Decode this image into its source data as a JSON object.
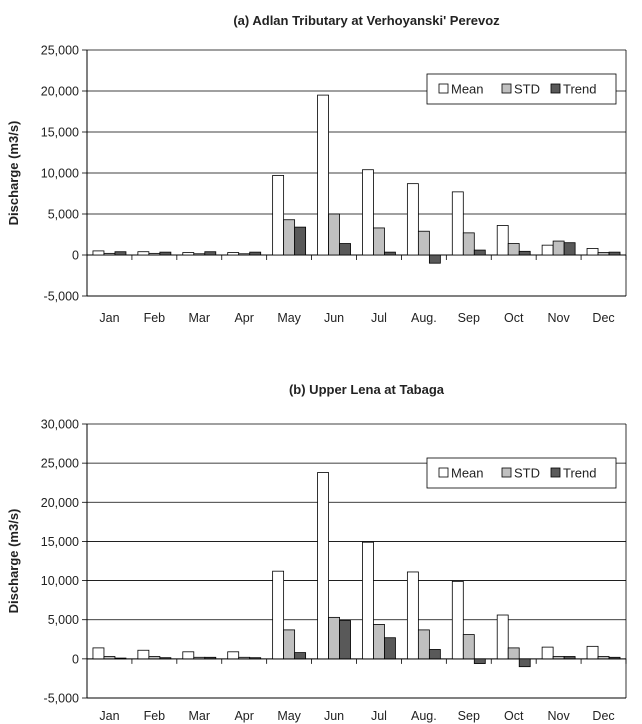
{
  "chart_data": [
    {
      "type": "bar",
      "title": "(a) Adlan Tributary at Verhoyanski' Perevoz",
      "ylabel": "Discharge (m3/s)",
      "xlabel": "",
      "ylim": [
        -5000,
        25000
      ],
      "yticks": [
        -5000,
        0,
        5000,
        10000,
        15000,
        20000,
        25000
      ],
      "ytick_labels": [
        "-5,000",
        "0",
        "5,000",
        "10,000",
        "15,000",
        "20,000",
        "25,000"
      ],
      "grid": true,
      "legend_position": "top-right",
      "categories": [
        "Jan",
        "Feb",
        "Mar",
        "Apr",
        "May",
        "Jun",
        "Jul",
        "Aug.",
        "Sep",
        "Oct",
        "Nov",
        "Dec"
      ],
      "series": [
        {
          "name": "Mean",
          "color": "#ffffff",
          "values": [
            500,
            400,
            300,
            300,
            9700,
            19500,
            10400,
            8700,
            7700,
            3600,
            1200,
            800
          ]
        },
        {
          "name": "STD",
          "color": "#c0c0c0",
          "values": [
            200,
            200,
            150,
            150,
            4300,
            5000,
            3300,
            2900,
            2700,
            1400,
            1700,
            300
          ]
        },
        {
          "name": "Trend",
          "color": "#595959",
          "values": [
            400,
            350,
            400,
            350,
            3400,
            1400,
            350,
            -1000,
            600,
            450,
            1500,
            350
          ]
        }
      ]
    },
    {
      "type": "bar",
      "title": "(b) Upper Lena at Tabaga",
      "ylabel": "Discharge (m3/s)",
      "xlabel": "",
      "ylim": [
        -5000,
        30000
      ],
      "yticks": [
        -5000,
        0,
        5000,
        10000,
        15000,
        20000,
        25000,
        30000
      ],
      "ytick_labels": [
        "-5,000",
        "0",
        "5,000",
        "10,000",
        "15,000",
        "20,000",
        "25,000",
        "30,000"
      ],
      "grid": true,
      "legend_position": "top-right",
      "categories": [
        "Jan",
        "Feb",
        "Mar",
        "Apr",
        "May",
        "Jun",
        "Jul",
        "Aug.",
        "Sep",
        "Oct",
        "Nov",
        "Dec"
      ],
      "series": [
        {
          "name": "Mean",
          "color": "#ffffff",
          "values": [
            1400,
            1100,
            900,
            900,
            11200,
            23800,
            14900,
            11100,
            9900,
            5600,
            1500,
            1600
          ]
        },
        {
          "name": "STD",
          "color": "#c0c0c0",
          "values": [
            300,
            300,
            200,
            200,
            3700,
            5300,
            4400,
            3700,
            3100,
            1400,
            300,
            300
          ]
        },
        {
          "name": "Trend",
          "color": "#595959",
          "values": [
            100,
            150,
            200,
            150,
            800,
            4900,
            2700,
            1200,
            -600,
            -1000,
            300,
            200
          ]
        }
      ]
    }
  ]
}
